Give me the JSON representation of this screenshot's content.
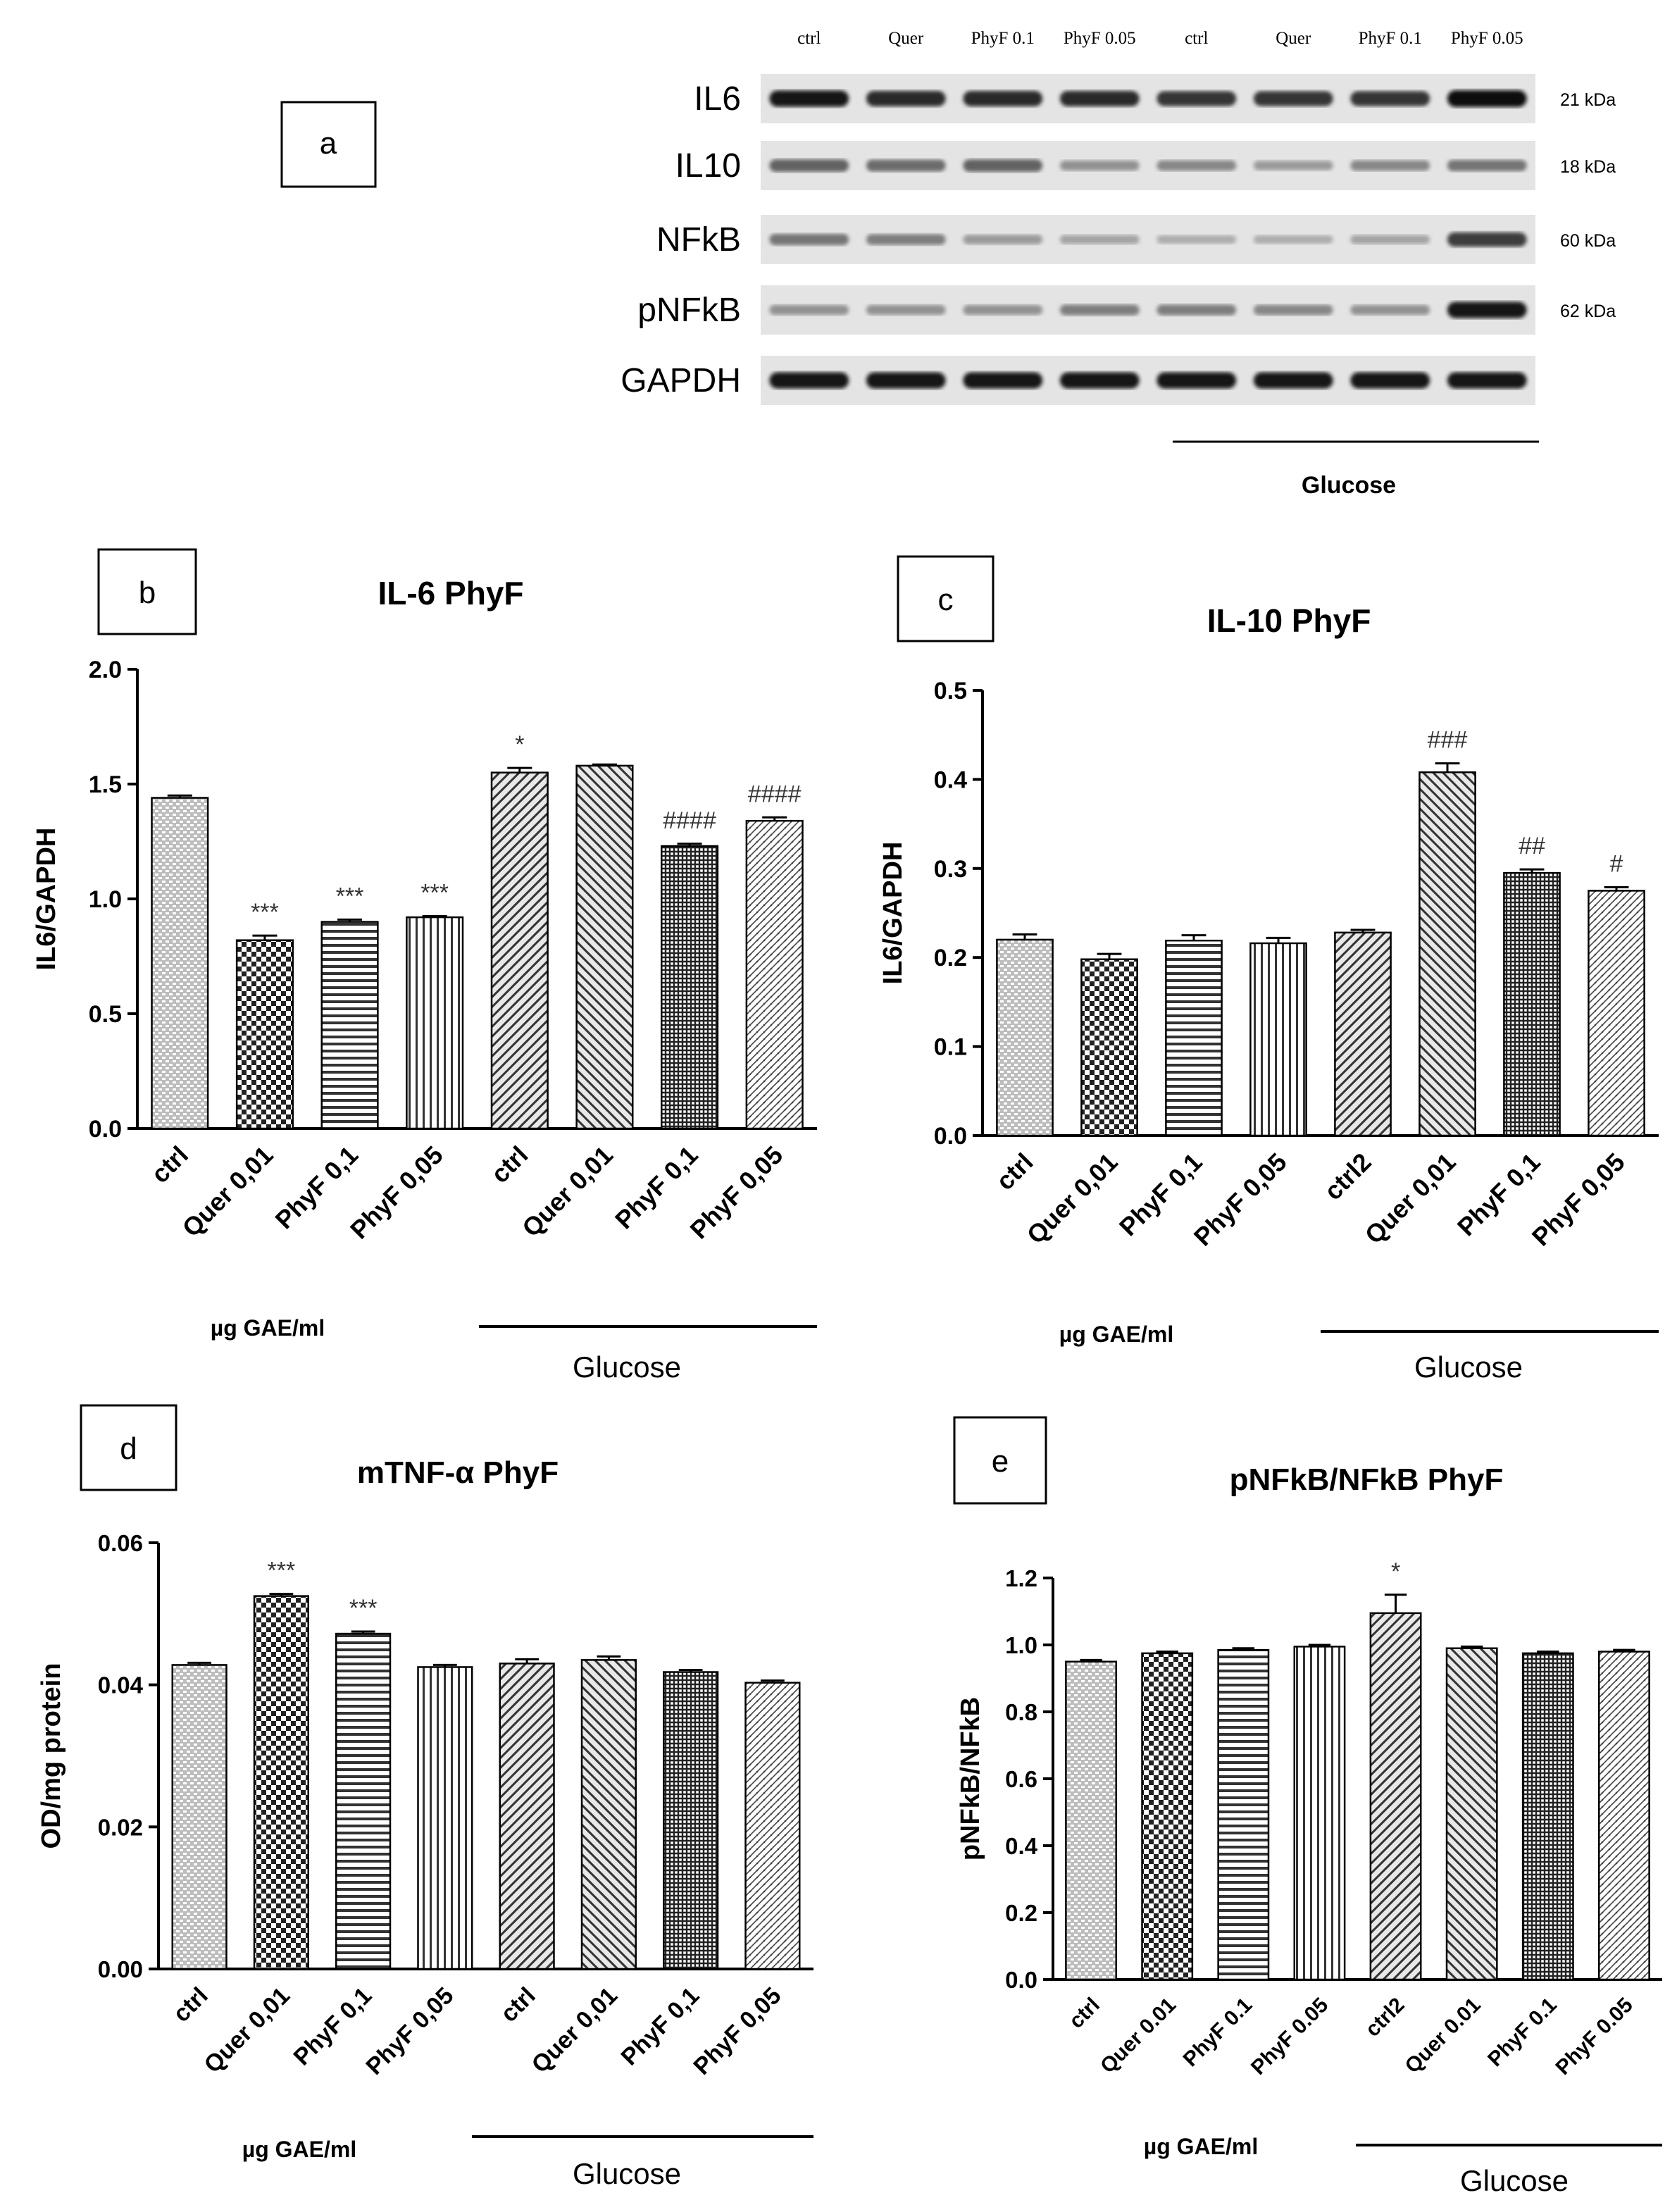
{
  "panel_a": {
    "letter": "a",
    "lane_labels": [
      "ctrl",
      "Quer",
      "PhyF 0.1",
      "PhyF 0.05",
      "ctrl",
      "Quer",
      "PhyF 0.1",
      "PhyF 0.05"
    ],
    "glucose_label": "Glucose",
    "proteins": [
      {
        "name": "IL6",
        "kda": "21 kDa",
        "intensity": [
          0.95,
          0.85,
          0.85,
          0.85,
          0.8,
          0.8,
          0.8,
          1.0
        ]
      },
      {
        "name": "IL10",
        "kda": "18 kDa",
        "intensity": [
          0.55,
          0.5,
          0.55,
          0.3,
          0.35,
          0.25,
          0.35,
          0.45
        ]
      },
      {
        "name": "NFkB",
        "kda": "60 kDa",
        "intensity": [
          0.45,
          0.4,
          0.25,
          0.2,
          0.15,
          0.15,
          0.2,
          0.75
        ]
      },
      {
        "name": "pNFkB",
        "kda": "62 kDa",
        "intensity": [
          0.3,
          0.3,
          0.3,
          0.4,
          0.4,
          0.35,
          0.3,
          0.95
        ]
      },
      {
        "name": "GAPDH",
        "kda": "",
        "intensity": [
          0.95,
          0.95,
          0.95,
          0.95,
          0.95,
          0.95,
          0.95,
          0.95
        ]
      }
    ]
  },
  "chart_data": [
    {
      "panel": "b",
      "type": "bar",
      "title": "IL-6 PhyF",
      "ylabel": "IL6/GAPDH",
      "ylim": [
        0,
        2.0
      ],
      "yticks": [
        "0.0",
        "0.5",
        "1.0",
        "1.5",
        "2.0"
      ],
      "categories": [
        "ctrl",
        "Quer 0,01",
        "PhyF 0,1",
        "PhyF 0,05",
        "ctrl",
        "Quer 0,01",
        "PhyF 0,1",
        "PhyF 0,05"
      ],
      "values": [
        1.44,
        0.82,
        0.9,
        0.92,
        1.55,
        1.58,
        1.23,
        1.34
      ],
      "errors": [
        0.01,
        0.02,
        0.01,
        0.005,
        0.02,
        0.005,
        0.01,
        0.015
      ],
      "annotations": [
        "",
        "***",
        "***",
        "***",
        "*",
        "",
        "####",
        "####"
      ],
      "unit_label": "µg GAE/ml",
      "group_label": "Glucose"
    },
    {
      "panel": "c",
      "type": "bar",
      "title": "IL-10 PhyF",
      "ylabel": "IL6/GAPDH",
      "ylim": [
        0,
        0.5
      ],
      "yticks": [
        "0.0",
        "0.1",
        "0.2",
        "0.3",
        "0.4",
        "0.5"
      ],
      "categories": [
        "ctrl",
        "Quer 0,01",
        "PhyF 0,1",
        "PhyF 0,05",
        "ctrl2",
        "Quer 0,01",
        "PhyF 0,1",
        "PhyF 0,05"
      ],
      "values": [
        0.22,
        0.198,
        0.219,
        0.216,
        0.228,
        0.408,
        0.295,
        0.275
      ],
      "errors": [
        0.006,
        0.006,
        0.006,
        0.006,
        0.003,
        0.01,
        0.004,
        0.004
      ],
      "annotations": [
        "",
        "",
        "",
        "",
        "",
        "###",
        "##",
        "#"
      ],
      "unit_label": "µg GAE/ml",
      "group_label": "Glucose"
    },
    {
      "panel": "d",
      "type": "bar",
      "title": "mTNF-α PhyF",
      "ylabel": "OD/mg protein",
      "ylim": [
        0,
        0.06
      ],
      "yticks": [
        "0.00",
        "0.02",
        "0.04",
        "0.06"
      ],
      "categories": [
        "ctrl",
        "Quer 0,01",
        "PhyF 0,1",
        "PhyF 0,05",
        "ctrl",
        "Quer 0,01",
        "PhyF 0,1",
        "PhyF 0,05"
      ],
      "values": [
        0.0428,
        0.0525,
        0.0472,
        0.0425,
        0.043,
        0.0435,
        0.0418,
        0.0403
      ],
      "errors": [
        0.0003,
        0.0003,
        0.0003,
        0.0003,
        0.0006,
        0.0005,
        0.0003,
        0.0003
      ],
      "annotations": [
        "",
        "***",
        "***",
        "",
        "",
        "",
        "",
        ""
      ],
      "unit_label": "µg GAE/ml",
      "group_label": "Glucose"
    },
    {
      "panel": "e",
      "type": "bar",
      "title": "pNFkB/NFkB PhyF",
      "ylabel": "pNFkB/NFkB",
      "ylim": [
        0,
        1.2
      ],
      "yticks": [
        "0.0",
        "0.2",
        "0.4",
        "0.6",
        "0.8",
        "1.0",
        "1.2"
      ],
      "categories": [
        "ctrl",
        "Quer 0.01",
        "PhyF 0.1",
        "PhyF 0.05",
        "ctrl2",
        "Quer 0.01",
        "PhyF 0.1",
        "PhyF 0.05"
      ],
      "values": [
        0.95,
        0.975,
        0.985,
        0.995,
        1.095,
        0.99,
        0.975,
        0.98
      ],
      "errors": [
        0.005,
        0.005,
        0.005,
        0.005,
        0.055,
        0.005,
        0.005,
        0.005
      ],
      "annotations": [
        "",
        "",
        "",
        "",
        "*",
        "",
        "",
        ""
      ],
      "unit_label": "µg GAE/ml",
      "group_label": "Glucose"
    }
  ]
}
